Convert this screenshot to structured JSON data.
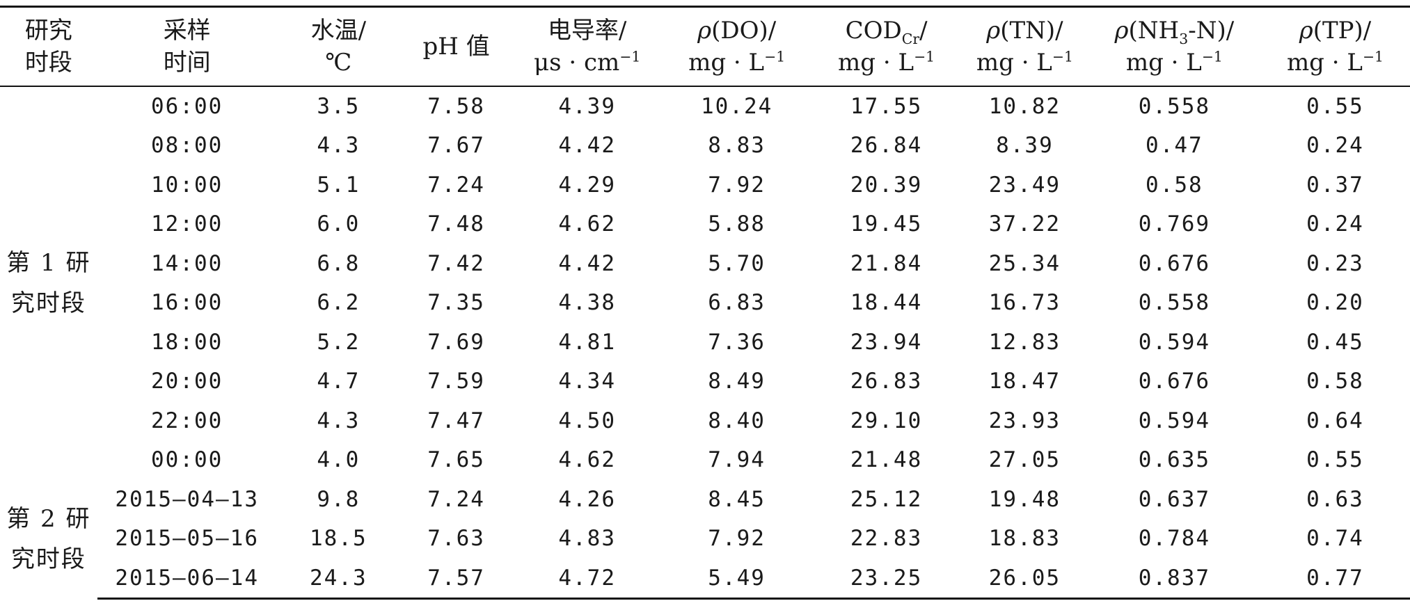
{
  "table": {
    "headers": [
      {
        "line1": "研究",
        "line2": "时段"
      },
      {
        "line1": "采样",
        "line2": "时间"
      },
      {
        "line1": "水温/",
        "line2": "℃"
      },
      {
        "line1": "pH 值",
        "line2": ""
      },
      {
        "line1": "电导率/",
        "line2_prefix": "μs · cm",
        "line2_sup": "−1"
      },
      {
        "line1_italic": "ρ",
        "line1": "(DO)/",
        "line2_prefix": "mg · L",
        "line2_sup": "−1"
      },
      {
        "line1": "COD",
        "line1_sub": "Cr",
        "line1_suffix": "/",
        "line2_prefix": "mg · L",
        "line2_sup": "−1"
      },
      {
        "line1_italic": "ρ",
        "line1": "(TN)/",
        "line2_prefix": "mg · L",
        "line2_sup": "−1"
      },
      {
        "line1_italic": "ρ",
        "line1": "(NH",
        "line1_sub": "3",
        "line1_suffix": "-N)/",
        "line2_prefix": "mg · L",
        "line2_sup": "−1"
      },
      {
        "line1_italic": "ρ",
        "line1": "(TP)/",
        "line2_prefix": "mg · L",
        "line2_sup": "−1"
      }
    ],
    "periods": [
      {
        "line1": "第 1 研",
        "line2": "究时段"
      },
      {
        "line1": "第 2 研",
        "line2": "究时段"
      }
    ],
    "rows": [
      [
        "06:00",
        "3.5",
        "7.58",
        "4.39",
        "10.24",
        "17.55",
        "10.82",
        "0.558",
        "0.55"
      ],
      [
        "08:00",
        "4.3",
        "7.67",
        "4.42",
        "8.83",
        "26.84",
        "8.39",
        "0.47",
        "0.24"
      ],
      [
        "10:00",
        "5.1",
        "7.24",
        "4.29",
        "7.92",
        "20.39",
        "23.49",
        "0.58",
        "0.37"
      ],
      [
        "12:00",
        "6.0",
        "7.48",
        "4.62",
        "5.88",
        "19.45",
        "37.22",
        "0.769",
        "0.24"
      ],
      [
        "14:00",
        "6.8",
        "7.42",
        "4.42",
        "5.70",
        "21.84",
        "25.34",
        "0.676",
        "0.23"
      ],
      [
        "16:00",
        "6.2",
        "7.35",
        "4.38",
        "6.83",
        "18.44",
        "16.73",
        "0.558",
        "0.20"
      ],
      [
        "18:00",
        "5.2",
        "7.69",
        "4.81",
        "7.36",
        "23.94",
        "12.83",
        "0.594",
        "0.45"
      ],
      [
        "20:00",
        "4.7",
        "7.59",
        "4.34",
        "8.49",
        "26.83",
        "18.47",
        "0.676",
        "0.58"
      ],
      [
        "22:00",
        "4.3",
        "7.47",
        "4.50",
        "8.40",
        "29.10",
        "23.93",
        "0.594",
        "0.64"
      ],
      [
        "00:00",
        "4.0",
        "7.65",
        "4.62",
        "7.94",
        "21.48",
        "27.05",
        "0.635",
        "0.55"
      ],
      [
        "2015—04—13",
        "9.8",
        "7.24",
        "4.26",
        "8.45",
        "25.12",
        "19.48",
        "0.637",
        "0.63"
      ],
      [
        "2015—05—16",
        "18.5",
        "7.63",
        "4.83",
        "7.92",
        "22.83",
        "18.83",
        "0.784",
        "0.74"
      ],
      [
        "2015—06—14",
        "24.3",
        "7.57",
        "4.72",
        "5.49",
        "23.25",
        "26.05",
        "0.837",
        "0.77"
      ]
    ]
  }
}
